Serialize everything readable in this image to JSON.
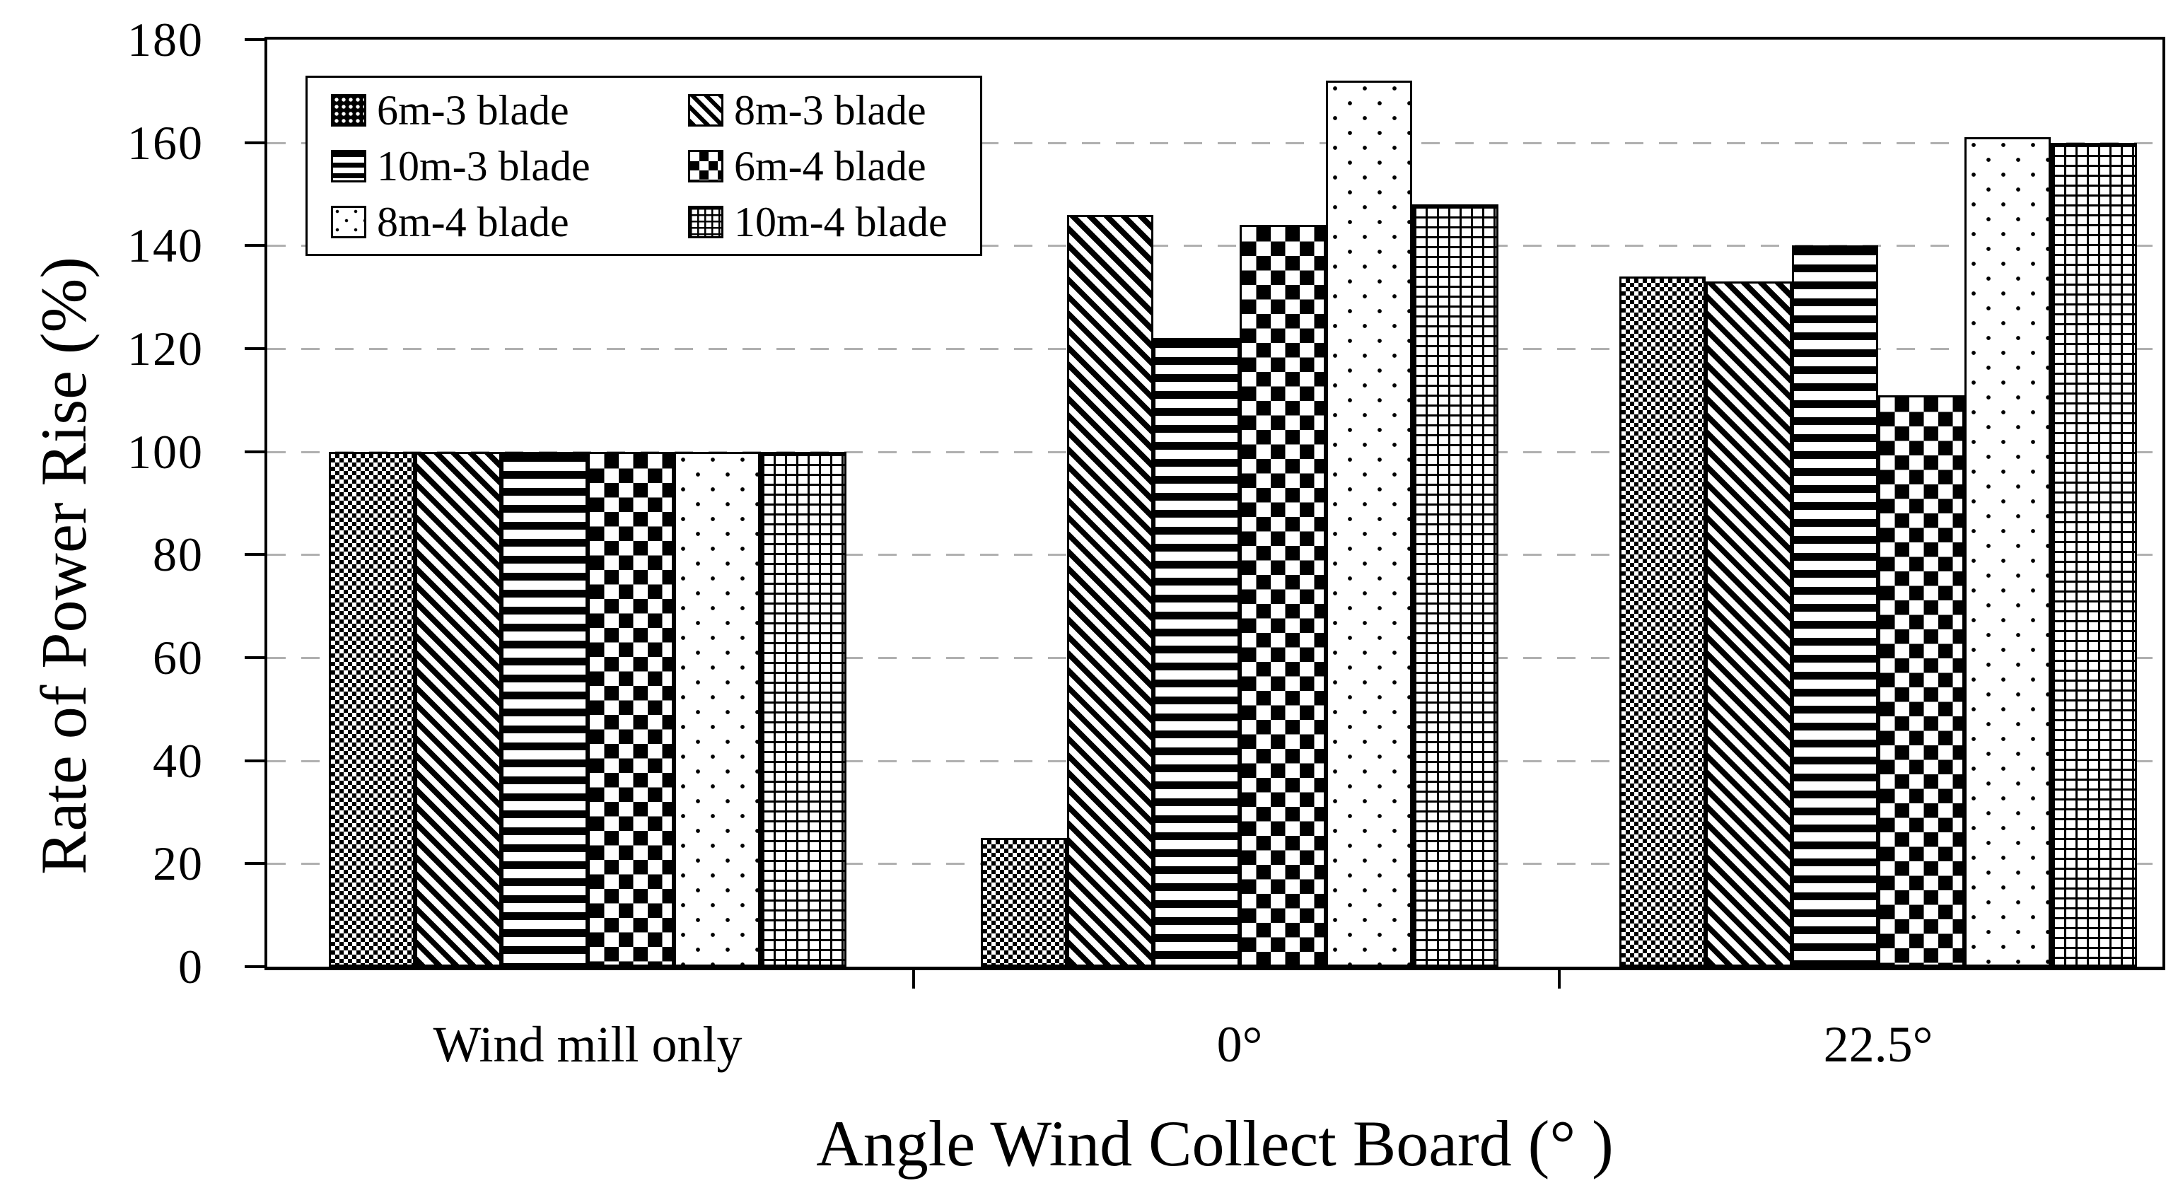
{
  "chart_data": {
    "type": "bar",
    "title": "",
    "xlabel": "Angle Wind Collect Board (°  )",
    "ylabel": "Rate of Power Rise (%)",
    "categories": [
      "Wind mill only",
      "0°",
      "22.5°"
    ],
    "series": [
      {
        "name": "6m-3 blade",
        "pattern": "fine-checker-dots",
        "values": [
          100,
          25,
          134
        ]
      },
      {
        "name": "8m-3 blade",
        "pattern": "diagonal-stripes",
        "values": [
          100,
          146,
          133
        ]
      },
      {
        "name": "10m-3 blade",
        "pattern": "horizontal-stripes",
        "values": [
          100,
          122,
          140
        ]
      },
      {
        "name": "6m-4 blade",
        "pattern": "checkerboard",
        "values": [
          100,
          144,
          111
        ]
      },
      {
        "name": "8m-4 blade",
        "pattern": "sparse-dots",
        "values": [
          100,
          172,
          161
        ]
      },
      {
        "name": "10m-4 blade",
        "pattern": "grid-hatch",
        "values": [
          100,
          148,
          160
        ]
      }
    ],
    "ylim": [
      0,
      180
    ],
    "yticks": [
      0,
      20,
      40,
      60,
      80,
      100,
      120,
      140,
      160,
      180
    ],
    "grid": "dashed-horizontal",
    "legend_position": "top-left",
    "legend_columns": 2
  },
  "colors": {
    "foreground": "#000000",
    "background": "#ffffff",
    "gridline": "#b0b0b0"
  }
}
